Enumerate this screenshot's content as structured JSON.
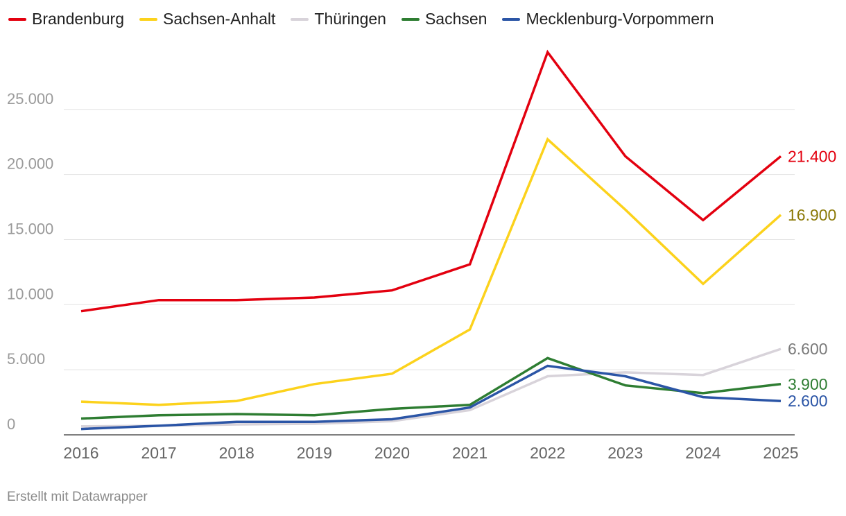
{
  "chart_data": {
    "type": "line",
    "title": "",
    "xlabel": "",
    "ylabel": "",
    "x": [
      2016,
      2017,
      2018,
      2019,
      2020,
      2021,
      2022,
      2023,
      2024,
      2025
    ],
    "x_tick_labels": [
      "2016",
      "2017",
      "2018",
      "2019",
      "2020",
      "2021",
      "2022",
      "2023",
      "2024",
      "2025"
    ],
    "ylim": [
      0,
      29500
    ],
    "y_ticks": [
      0,
      5000,
      10000,
      15000,
      20000,
      25000
    ],
    "y_tick_labels": [
      "0",
      "5.000",
      "10.000",
      "15.000",
      "20.000",
      "25.000"
    ],
    "grid": true,
    "legend_position": "top-left",
    "series": [
      {
        "name": "Brandenburg",
        "color": "#e3000f",
        "label_color": "#e3000f",
        "values": [
          9500,
          10350,
          10350,
          10550,
          11100,
          13100,
          29400,
          21400,
          16500,
          21400
        ],
        "end_label": "21.400"
      },
      {
        "name": "Sachsen-Anhalt",
        "color": "#fcd21c",
        "label_color": "#8c7a08",
        "values": [
          2550,
          2300,
          2600,
          3900,
          4700,
          8100,
          22700,
          17300,
          11600,
          16900
        ],
        "end_label": "16.900"
      },
      {
        "name": "Thüringen",
        "color": "#d8d3da",
        "label_color": "#7a7a7a",
        "values": [
          650,
          700,
          800,
          850,
          1050,
          1900,
          4500,
          4800,
          4600,
          6600
        ],
        "end_label": "6.600"
      },
      {
        "name": "Sachsen",
        "color": "#2e7d32",
        "label_color": "#2e7d32",
        "values": [
          1250,
          1500,
          1600,
          1500,
          2000,
          2300,
          5900,
          3800,
          3200,
          3900
        ],
        "end_label": "3.900"
      },
      {
        "name": "Mecklenburg-Vorpommern",
        "color": "#2b55a6",
        "label_color": "#2b55a6",
        "values": [
          450,
          700,
          1000,
          1000,
          1200,
          2100,
          5300,
          4500,
          2900,
          2600
        ],
        "end_label": "2.600"
      }
    ]
  },
  "footer": {
    "credit": "Erstellt mit Datawrapper"
  }
}
